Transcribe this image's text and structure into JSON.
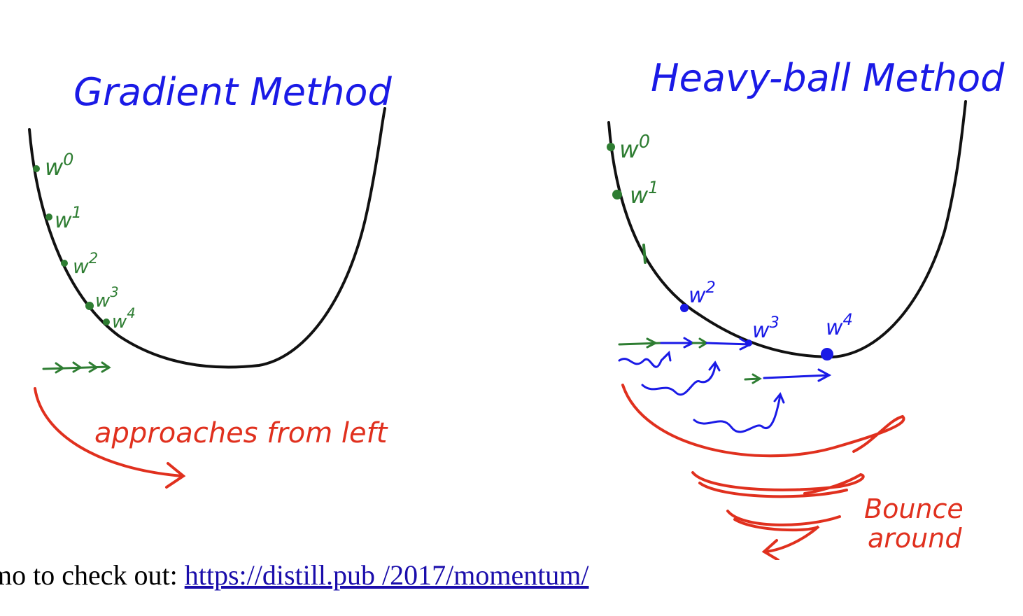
{
  "colors": {
    "curve": "#111111",
    "green": "#2e7d32",
    "blue": "#1a1ae6",
    "red": "#e0301e"
  },
  "left_panel": {
    "title": "Gradient Method",
    "points": [
      "w0",
      "w1",
      "w2",
      "w3",
      "w4"
    ],
    "annotation": "approaches from left"
  },
  "right_panel": {
    "title": "Heavy-ball Method",
    "points": [
      "w0",
      "w1",
      "w2",
      "w3",
      "w4"
    ],
    "annotation": "Bounce around"
  },
  "caption": {
    "prefix": "mo to check out:",
    "link_text": "https://distill.pub /2017/momentum/"
  }
}
